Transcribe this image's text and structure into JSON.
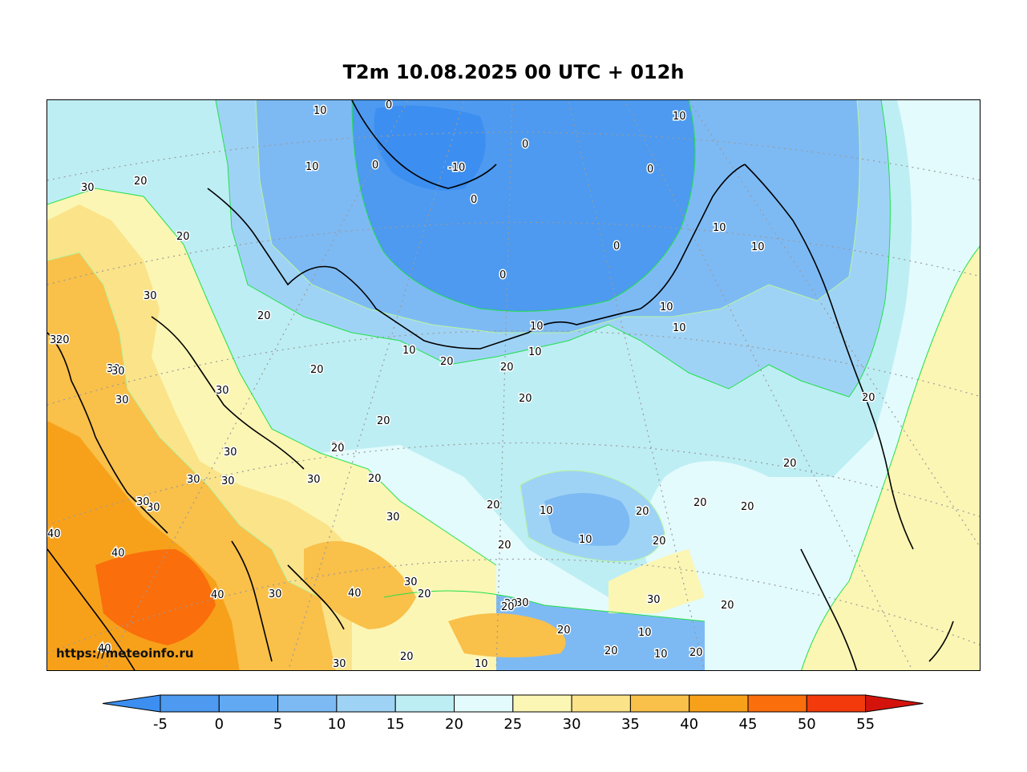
{
  "title": "T2m 10.08.2025 00 UTC + 012h",
  "watermark": "https://meteoinfo.ru",
  "colorbar": {
    "ticks": [
      "-5",
      "0",
      "5",
      "10",
      "15",
      "20",
      "25",
      "30",
      "35",
      "40",
      "45",
      "50",
      "55"
    ],
    "colors": [
      "#3c8ff0",
      "#4d9af0",
      "#62a9f3",
      "#7dbaf4",
      "#9fd3f5",
      "#bdeef4",
      "#e3fbfc",
      "#fbf6b4",
      "#fbe389",
      "#f9c04a",
      "#f7a11a",
      "#fa6e0c",
      "#f23a0c"
    ],
    "under_color": "#3c8ff0",
    "over_color": "#d4140c"
  },
  "contour_labels": [
    "10",
    "0",
    "10",
    "0",
    "-10",
    "0",
    "0",
    "0",
    "0",
    "0",
    "10",
    "10",
    "10",
    "10",
    "10",
    "10",
    "10",
    "20",
    "30",
    "20",
    "30",
    "30",
    "30",
    "30",
    "20",
    "30",
    "20",
    "20",
    "20",
    "20",
    "20",
    "20",
    "20",
    "20",
    "20",
    "30",
    "30",
    "30",
    "30",
    "20",
    "30",
    "40",
    "40",
    "40",
    "30",
    "40",
    "30",
    "20",
    "20",
    "30",
    "30",
    "20",
    "20",
    "20",
    "10",
    "10",
    "10",
    "20",
    "20",
    "20",
    "20",
    "10",
    "10",
    "20",
    "30",
    "20",
    "20",
    "20",
    "20",
    "30",
    "40",
    "10",
    "30",
    "30",
    "20"
  ]
}
